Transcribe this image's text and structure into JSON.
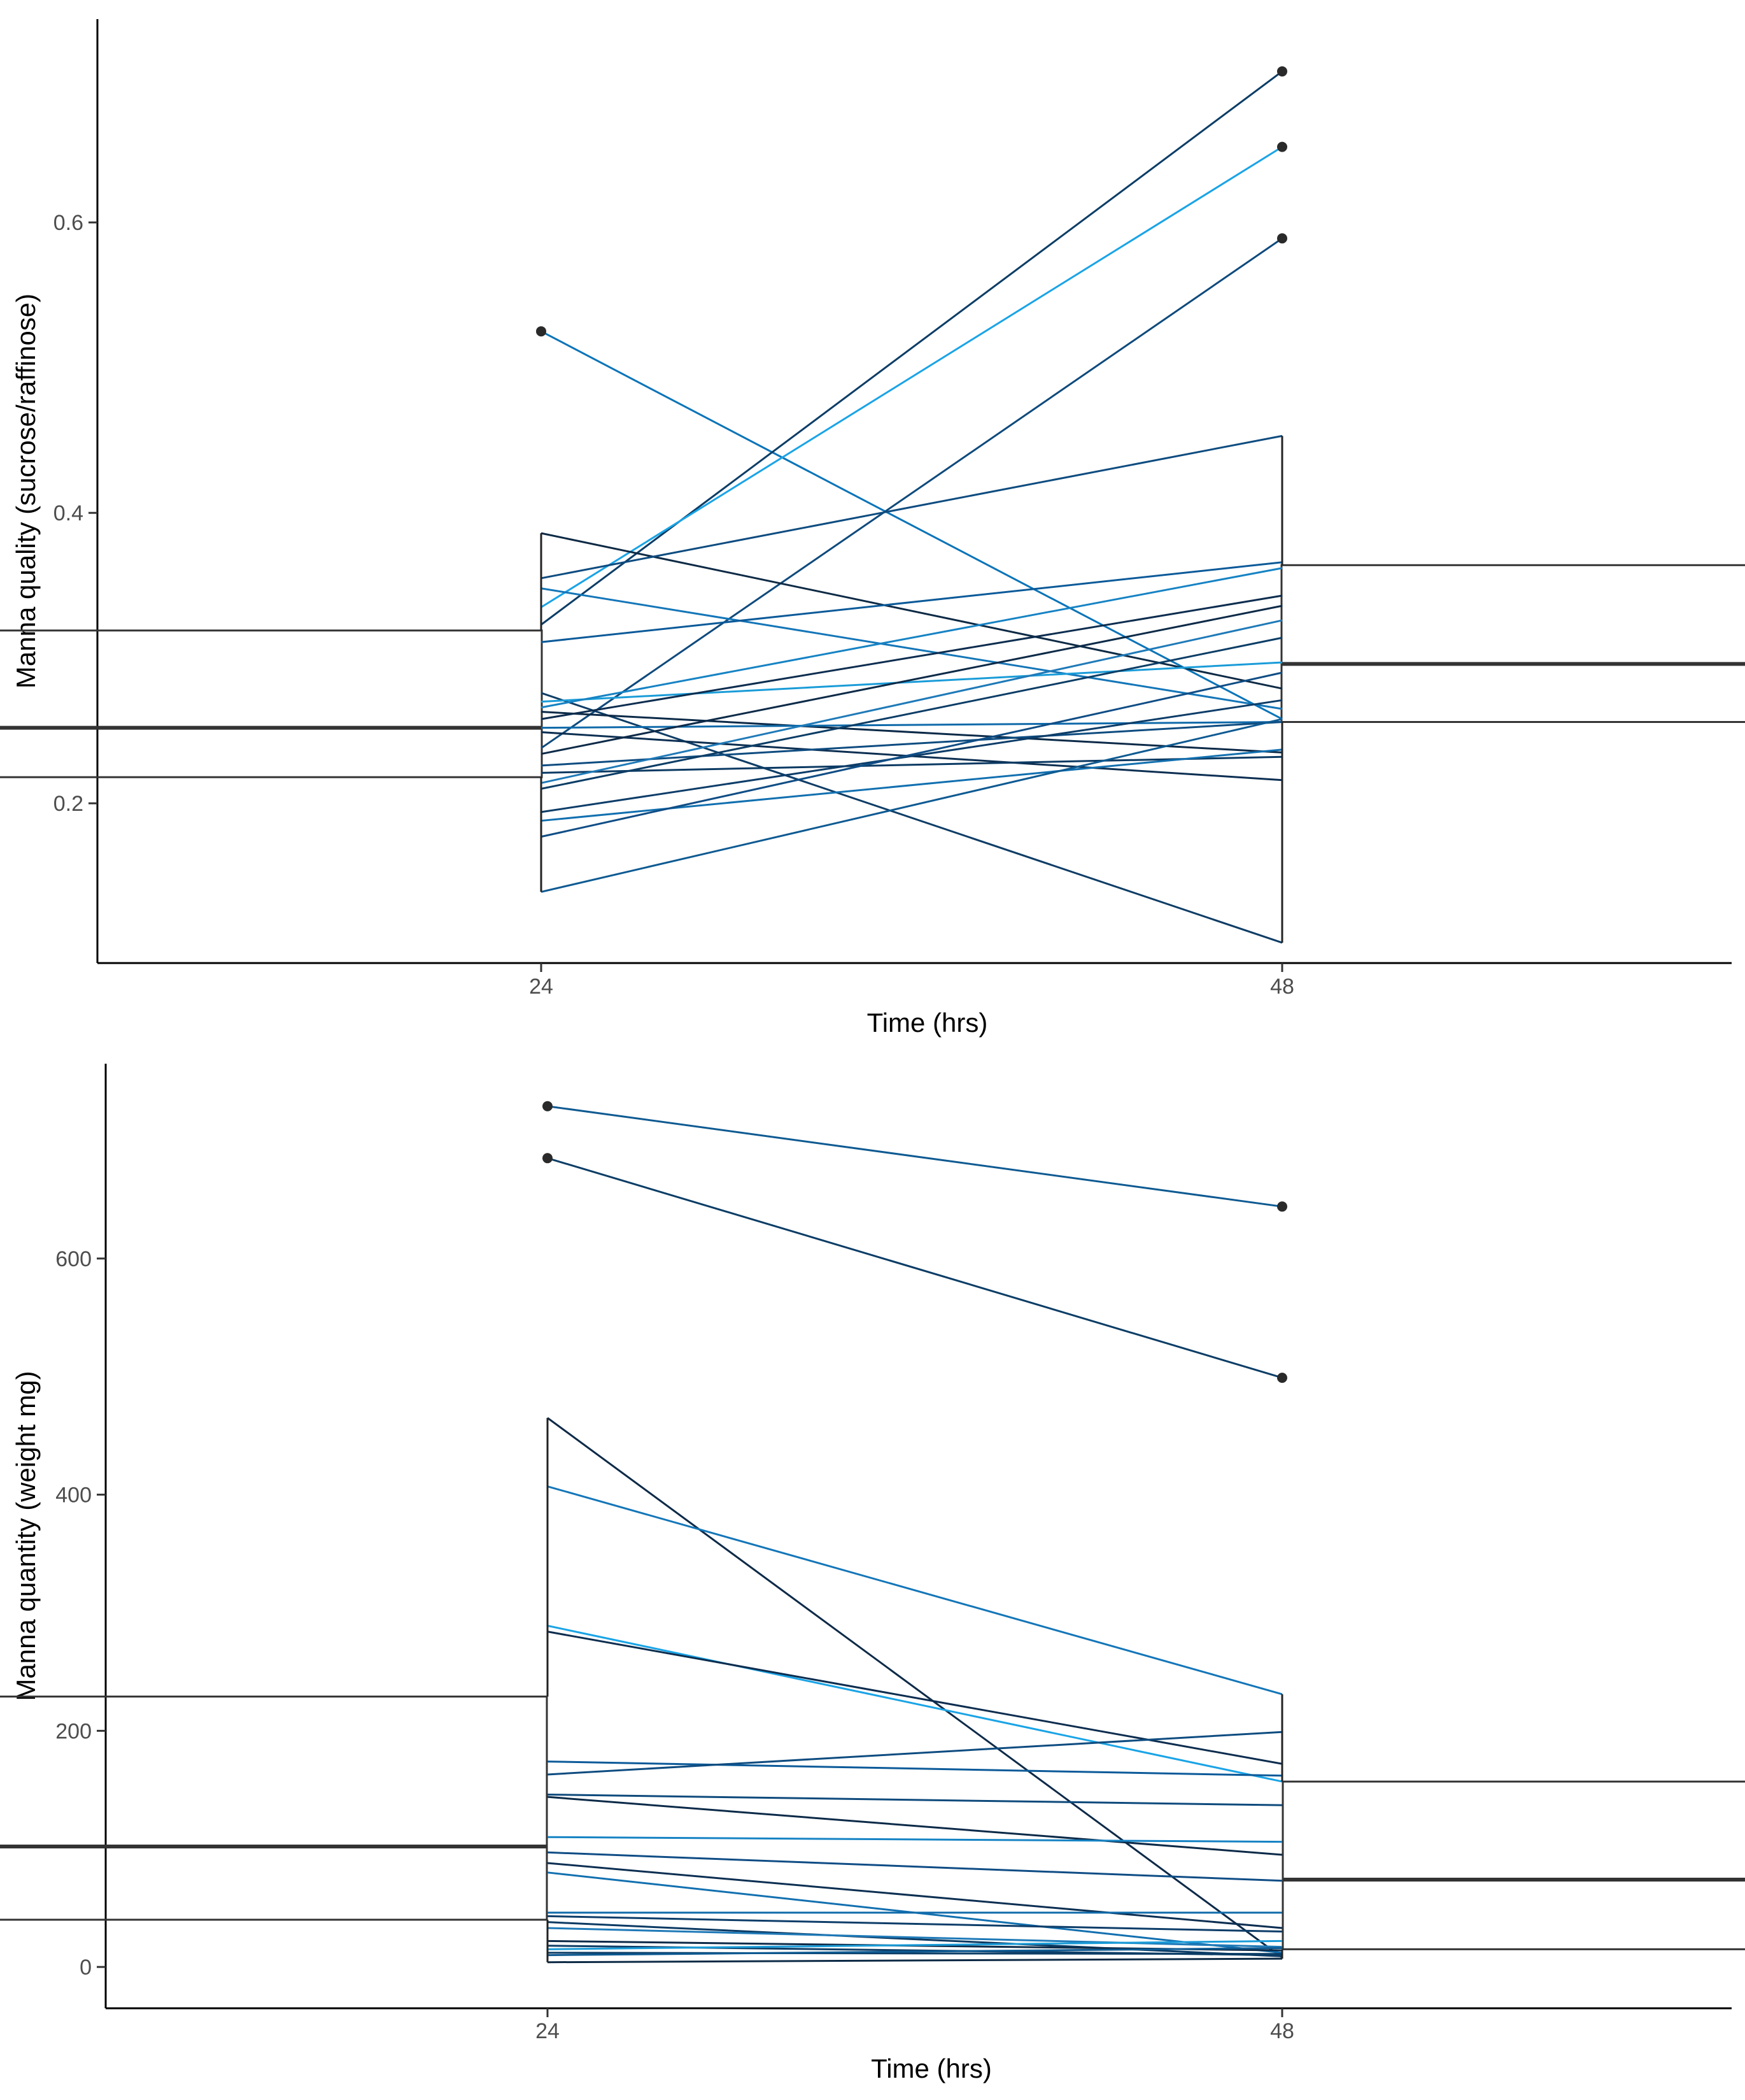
{
  "chart_data": [
    {
      "type": "boxplot-with-paired-lines",
      "title": "",
      "xlabel": "Time (hrs)",
      "ylabel": "Manna quality (sucrose/raffinose)",
      "categories": [
        "24",
        "48"
      ],
      "ylim": [
        0.09,
        0.74
      ],
      "yticks": [
        0.2,
        0.4,
        0.6
      ],
      "ytick_labels": [
        "0.2",
        "0.4",
        "0.6"
      ],
      "boxes": [
        {
          "category": "24",
          "lower_whisker": 0.139,
          "q1": 0.218,
          "median": 0.252,
          "q3": 0.319,
          "upper_whisker": 0.386
        },
        {
          "category": "48",
          "lower_whisker": 0.104,
          "q1": 0.256,
          "median": 0.296,
          "q3": 0.364,
          "upper_whisker": 0.453
        }
      ],
      "outliers": [
        {
          "category": "24",
          "value": 0.525
        },
        {
          "category": "48",
          "value": 0.589
        },
        {
          "category": "48",
          "value": 0.652
        },
        {
          "category": "48",
          "value": 0.704
        }
      ],
      "pairs": [
        {
          "from": 0.525,
          "to": 0.258,
          "color": "#0a74b8"
        },
        {
          "from": 0.323,
          "to": 0.704,
          "color": "#0b3d66"
        },
        {
          "from": 0.335,
          "to": 0.652,
          "color": "#1aa4e6"
        },
        {
          "from": 0.238,
          "to": 0.589,
          "color": "#0e4a7c"
        },
        {
          "from": 0.386,
          "to": 0.279,
          "color": "#0d2a45"
        },
        {
          "from": 0.355,
          "to": 0.453,
          "color": "#0e4c80"
        },
        {
          "from": 0.348,
          "to": 0.265,
          "color": "#1476b8"
        },
        {
          "from": 0.311,
          "to": 0.366,
          "color": "#0b5a99"
        },
        {
          "from": 0.276,
          "to": 0.104,
          "color": "#0e3d66"
        },
        {
          "from": 0.27,
          "to": 0.297,
          "color": "#1a9cd8"
        },
        {
          "from": 0.266,
          "to": 0.362,
          "color": "#1683c4"
        },
        {
          "from": 0.263,
          "to": 0.235,
          "color": "#0b2a48"
        },
        {
          "from": 0.258,
          "to": 0.343,
          "color": "#0d2d4f"
        },
        {
          "from": 0.252,
          "to": 0.256,
          "color": "#0f6aaa"
        },
        {
          "from": 0.249,
          "to": 0.216,
          "color": "#0c2f52"
        },
        {
          "from": 0.234,
          "to": 0.336,
          "color": "#0d2a48"
        },
        {
          "from": 0.226,
          "to": 0.256,
          "color": "#0e4c80"
        },
        {
          "from": 0.221,
          "to": 0.232,
          "color": "#0b3a63"
        },
        {
          "from": 0.214,
          "to": 0.326,
          "color": "#1f7ab8"
        },
        {
          "from": 0.21,
          "to": 0.314,
          "color": "#0b3d66"
        },
        {
          "from": 0.194,
          "to": 0.271,
          "color": "#0d3d69"
        },
        {
          "from": 0.188,
          "to": 0.237,
          "color": "#1270b0"
        },
        {
          "from": 0.177,
          "to": 0.29,
          "color": "#0f4d85"
        },
        {
          "from": 0.139,
          "to": 0.258,
          "color": "#0e5a92"
        }
      ]
    },
    {
      "type": "boxplot-with-paired-lines",
      "title": "",
      "xlabel": "Time (hrs)",
      "ylabel": "Manna quantity (weight mg)",
      "categories": [
        "24",
        "48"
      ],
      "ylim": [
        -35,
        765
      ],
      "yticks": [
        0,
        200,
        400,
        600
      ],
      "ytick_labels": [
        "0",
        "200",
        "400",
        "600"
      ],
      "boxes": [
        {
          "category": "24",
          "lower_whisker": 4,
          "q1": 40,
          "median": 102,
          "q3": 229,
          "upper_whisker": 465
        },
        {
          "category": "48",
          "lower_whisker": 7,
          "q1": 15,
          "median": 74,
          "q3": 157,
          "upper_whisker": 231
        }
      ],
      "outliers": [
        {
          "category": "24",
          "value": 685
        },
        {
          "category": "24",
          "value": 729
        },
        {
          "category": "48",
          "value": 499
        },
        {
          "category": "48",
          "value": 644
        }
      ],
      "pairs": [
        {
          "from": 729,
          "to": 644,
          "color": "#0e5a92"
        },
        {
          "from": 685,
          "to": 499,
          "color": "#0b3d66"
        },
        {
          "from": 465,
          "to": 8,
          "color": "#0d2a48"
        },
        {
          "from": 407,
          "to": 231,
          "color": "#1476b8"
        },
        {
          "from": 289,
          "to": 157,
          "color": "#1aa4e6"
        },
        {
          "from": 284,
          "to": 172,
          "color": "#0d2d4f"
        },
        {
          "from": 174,
          "to": 162,
          "color": "#0b5a99"
        },
        {
          "from": 163,
          "to": 199,
          "color": "#0e4c80"
        },
        {
          "from": 146,
          "to": 137,
          "color": "#0e4a7c"
        },
        {
          "from": 144,
          "to": 95,
          "color": "#0b2a48"
        },
        {
          "from": 110,
          "to": 106,
          "color": "#1683c4"
        },
        {
          "from": 97,
          "to": 73,
          "color": "#0f4d85"
        },
        {
          "from": 88,
          "to": 33,
          "color": "#0c2f52"
        },
        {
          "from": 80,
          "to": 12,
          "color": "#1270b0"
        },
        {
          "from": 46,
          "to": 46,
          "color": "#0f6aaa"
        },
        {
          "from": 43,
          "to": 30,
          "color": "#0d3d69"
        },
        {
          "from": 38,
          "to": 9,
          "color": "#0b3a63"
        },
        {
          "from": 33,
          "to": 17,
          "color": "#1f7ab8"
        },
        {
          "from": 22,
          "to": 14,
          "color": "#0d2a48"
        },
        {
          "from": 18,
          "to": 10,
          "color": "#0e3d66"
        },
        {
          "from": 15,
          "to": 22,
          "color": "#1a9cd8"
        },
        {
          "from": 12,
          "to": 11,
          "color": "#0b3d66"
        },
        {
          "from": 10,
          "to": 16,
          "color": "#0e5a92"
        },
        {
          "from": 4,
          "to": 7,
          "color": "#0d2a45"
        }
      ]
    }
  ]
}
